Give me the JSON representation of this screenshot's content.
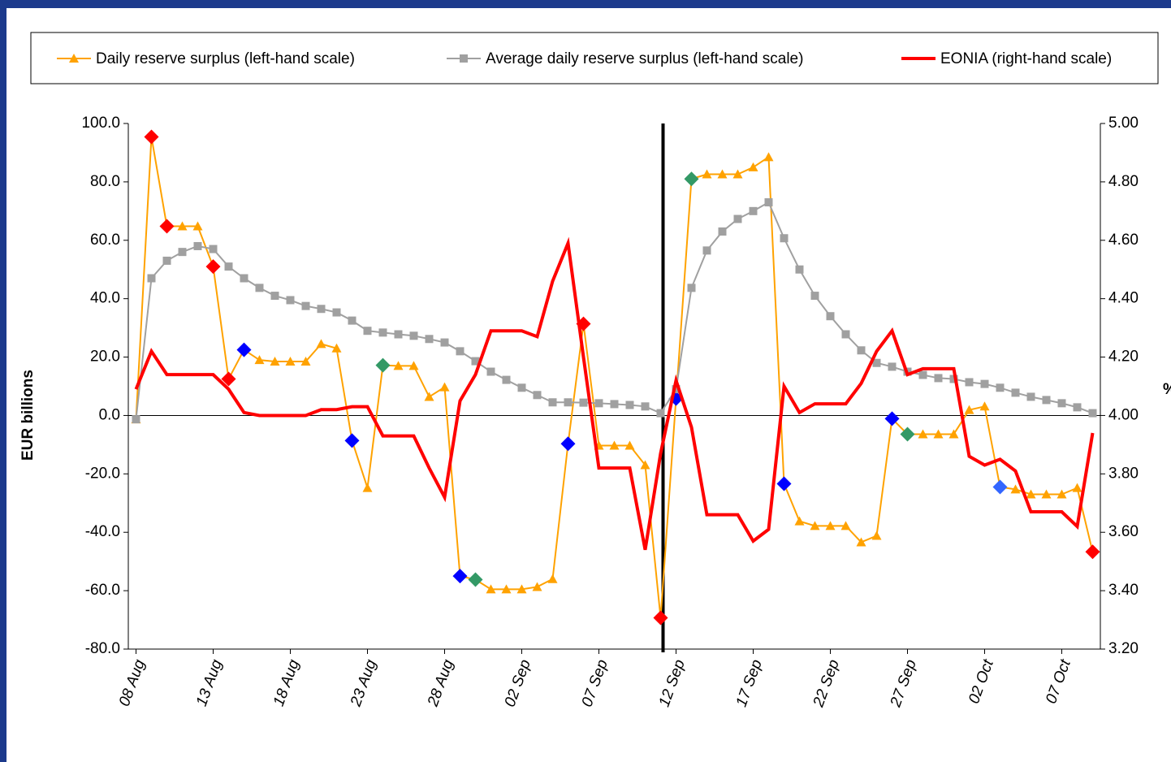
{
  "chart_data": {
    "type": "line",
    "y_label": "EUR billions",
    "y2_label": "%",
    "categories": [
      "08 Aug",
      null,
      null,
      null,
      null,
      "13 Aug",
      null,
      null,
      null,
      null,
      "18 Aug",
      null,
      null,
      null,
      null,
      "23 Aug",
      null,
      null,
      null,
      null,
      "28 Aug",
      null,
      null,
      null,
      null,
      "02 Sep",
      null,
      null,
      null,
      null,
      "07 Sep",
      null,
      null,
      null,
      null,
      "12 Sep",
      null,
      null,
      null,
      null,
      "17 Sep",
      null,
      null,
      null,
      null,
      "22 Sep",
      null,
      null,
      null,
      null,
      "27 Sep",
      null,
      null,
      null,
      null,
      "02 Oct",
      null,
      null,
      null,
      null,
      "07 Oct",
      null,
      null
    ],
    "ylim": [
      -80,
      100
    ],
    "yticks": [
      {
        "value": -80,
        "label": "-80.0"
      },
      {
        "value": -60,
        "label": "-60.0"
      },
      {
        "value": -40,
        "label": "-40.0"
      },
      {
        "value": -20,
        "label": "-20.0"
      },
      {
        "value": 0,
        "label": "0.0"
      },
      {
        "value": 20,
        "label": "20.0"
      },
      {
        "value": 40,
        "label": "40.0"
      },
      {
        "value": 60,
        "label": "60.0"
      },
      {
        "value": 80,
        "label": "80.0"
      },
      {
        "value": 100,
        "label": "100.0"
      }
    ],
    "y2lim": [
      3.2,
      5.0
    ],
    "y2ticks": [
      {
        "value": 3.2,
        "label": "3.20"
      },
      {
        "value": 3.4,
        "label": "3.40"
      },
      {
        "value": 3.6,
        "label": "3.60"
      },
      {
        "value": 3.8,
        "label": "3.80"
      },
      {
        "value": 4.0,
        "label": "4.00"
      },
      {
        "value": 4.2,
        "label": "4.20"
      },
      {
        "value": 4.4,
        "label": "4.40"
      },
      {
        "value": 4.6,
        "label": "4.60"
      },
      {
        "value": 4.8,
        "label": "4.80"
      },
      {
        "value": 5.0,
        "label": "5.00"
      }
    ],
    "series": [
      {
        "name": "Daily reserve surplus (left-hand scale)",
        "color": "#ffa200",
        "marker": "triangle",
        "values": [
          -1.3,
          95.4,
          64.8,
          64.8,
          64.8,
          51,
          12.5,
          22.5,
          19,
          18.5,
          18.5,
          18.5,
          24.5,
          23,
          -8.6,
          -24.8,
          17.2,
          17,
          17,
          6.4,
          9.7,
          -55,
          -56.2,
          -59.5,
          -59.5,
          -59.5,
          -58.7,
          -56,
          -9.7,
          31.4,
          -10.3,
          -10.3,
          -10.3,
          -17,
          -69.3,
          5.8,
          81,
          82.6,
          82.6,
          82.6,
          85,
          88.5,
          -23.4,
          -36.2,
          -37.8,
          -37.8,
          -37.8,
          -43.4,
          -41.2,
          -1.1,
          -6.4,
          -6.4,
          -6.4,
          -6.4,
          1.9,
          3.1,
          -24.5,
          -25.3,
          -27,
          -27,
          -27,
          -24.8,
          -46.7
        ],
        "highlight_colors": [
          null,
          "#ff0000",
          "#ff0000",
          null,
          null,
          "#ff0000",
          "#ff0000",
          "#0000ff",
          null,
          null,
          null,
          null,
          null,
          null,
          "#0000ff",
          null,
          "#339966",
          null,
          null,
          null,
          null,
          "#0000ff",
          "#339966",
          null,
          null,
          null,
          null,
          null,
          "#0000ff",
          "#ff0000",
          null,
          null,
          null,
          null,
          "#ff0000",
          "#0000ff",
          "#339966",
          null,
          null,
          null,
          null,
          null,
          "#0000ff",
          null,
          null,
          null,
          null,
          null,
          null,
          "#0000ff",
          "#339966",
          null,
          null,
          null,
          null,
          null,
          "#3366ff",
          null,
          null,
          null,
          null,
          null,
          "#ff0000"
        ]
      },
      {
        "name": "Average daily reserve surplus (left-hand scale)",
        "color": "#a0a0a0",
        "marker": "square",
        "values": [
          -1.3,
          47,
          53,
          56,
          58,
          57,
          51,
          47,
          43.7,
          41,
          39.5,
          37.5,
          36.5,
          35.3,
          32.5,
          29,
          28.4,
          27.8,
          27.3,
          26.2,
          25,
          22,
          18.6,
          15,
          12.2,
          9.5,
          7,
          4.5,
          4.5,
          4.4,
          4.2,
          3.9,
          3.6,
          3.1,
          0.8,
          9,
          43.7,
          56.5,
          63,
          67.3,
          70,
          73,
          60.7,
          50,
          41,
          34,
          27.8,
          22.3,
          18,
          16.7,
          15,
          13.9,
          12.8,
          12.5,
          11.4,
          10.8,
          9.5,
          7.8,
          6.4,
          5.3,
          4.2,
          2.8,
          0.8
        ]
      },
      {
        "name": "EONIA (right-hand scale)",
        "color": "#ff0000",
        "axis": "y2",
        "values": [
          4.09,
          4.22,
          4.14,
          4.14,
          4.14,
          4.14,
          4.09,
          4.01,
          4.0,
          4.0,
          4.0,
          4.0,
          4.02,
          4.02,
          4.03,
          4.03,
          3.93,
          3.93,
          3.93,
          3.82,
          3.72,
          4.05,
          4.14,
          4.29,
          4.29,
          4.29,
          4.27,
          4.46,
          4.59,
          4.2,
          3.82,
          3.82,
          3.82,
          3.54,
          3.87,
          4.12,
          3.96,
          3.66,
          3.66,
          3.66,
          3.57,
          3.61,
          4.1,
          4.01,
          4.04,
          4.04,
          4.04,
          4.11,
          4.22,
          4.29,
          4.14,
          4.16,
          4.16,
          4.16,
          3.86,
          3.83,
          3.85,
          3.81,
          3.67,
          3.67,
          3.67,
          3.62,
          3.94
        ]
      }
    ]
  }
}
